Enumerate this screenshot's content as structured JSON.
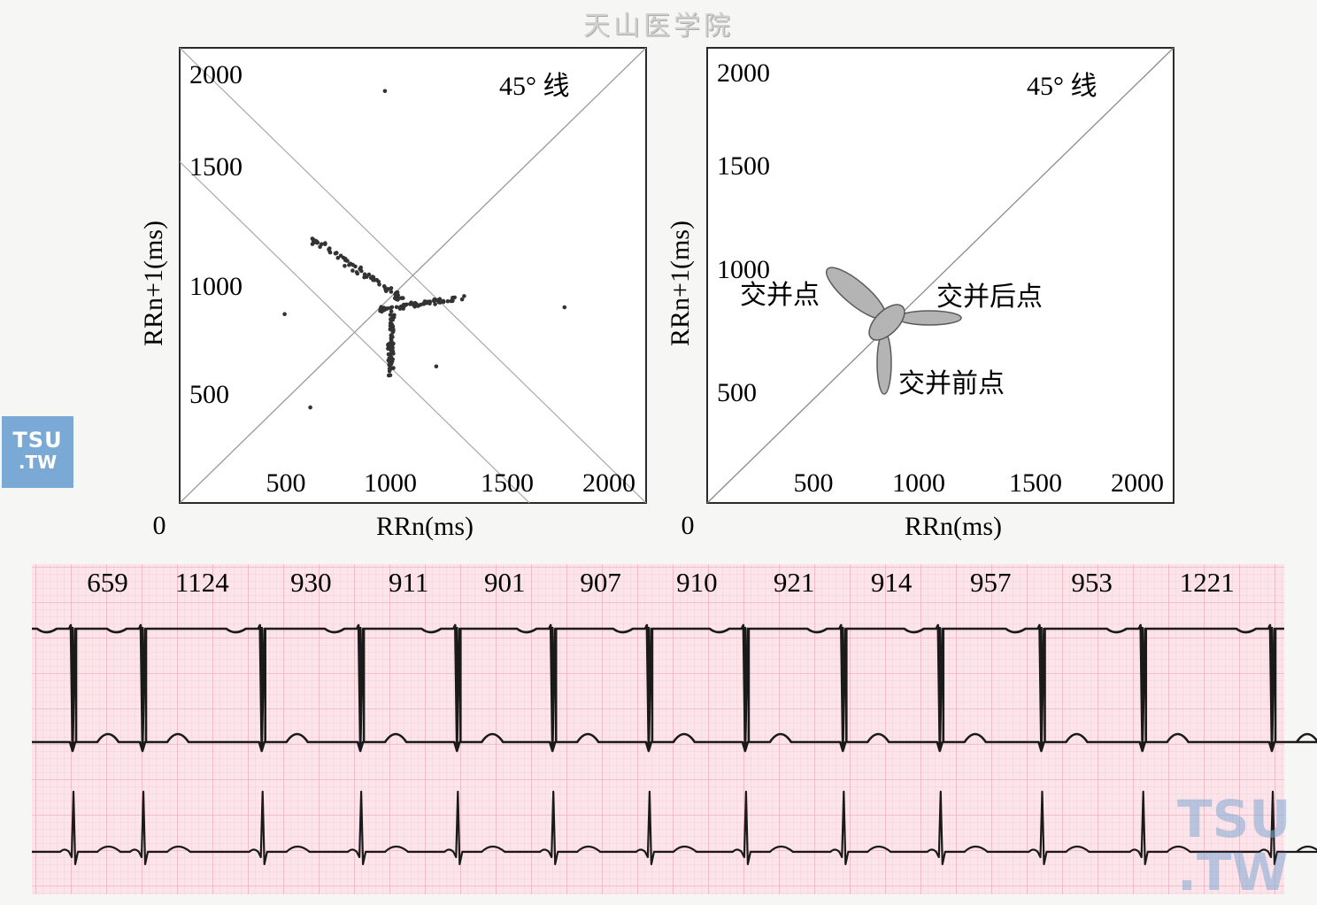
{
  "header": {
    "watermark": "天山医学院"
  },
  "badges": {
    "left_line1": "TSU",
    "left_line2": ".TW",
    "right_line1": "TSU",
    "right_line2": ".TW"
  },
  "chart_data": [
    {
      "type": "scatter",
      "title": "",
      "xlabel": "RRn(ms)",
      "ylabel": "RRn+1(ms)",
      "xlim": [
        0,
        2000
      ],
      "ylim": [
        0,
        2000
      ],
      "origin_label": "0",
      "x_ticks": [
        "500",
        "1000",
        "1500",
        "2000"
      ],
      "y_ticks": [
        "500",
        "1000",
        "1500",
        "2000"
      ],
      "annotation": "45° 线",
      "grid": true,
      "clusters": [
        {
          "name": "",
          "x_range": [
            570,
            1000
          ],
          "y_range": [
            880,
            1160
          ],
          "shape": "elongated, perpendicular to 45° line"
        },
        {
          "name": "",
          "x_range": [
            850,
            1250
          ],
          "y_range": [
            820,
            920
          ],
          "shape": "horizontal band"
        },
        {
          "name": "",
          "x_range": [
            880,
            950
          ],
          "y_range": [
            560,
            840
          ],
          "shape": "vertical band"
        }
      ],
      "outliers": [
        {
          "x": 880,
          "y": 1810
        },
        {
          "x": 450,
          "y": 830
        },
        {
          "x": 1650,
          "y": 860
        },
        {
          "x": 560,
          "y": 420
        },
        {
          "x": 1100,
          "y": 600
        }
      ],
      "color": "#333333"
    },
    {
      "type": "scatter",
      "title": "",
      "xlabel": "RRn(ms)",
      "ylabel": "RRn+1(ms)",
      "xlim": [
        0,
        2000
      ],
      "ylim": [
        0,
        2000
      ],
      "origin_label": "0",
      "x_ticks": [
        "500",
        "1000",
        "1500",
        "2000"
      ],
      "y_ticks": [
        "500",
        "1000",
        "1500",
        "2000"
      ],
      "annotation": "45° 线",
      "grid": false,
      "ellipses": [
        {
          "label": "交并点",
          "cx": 680,
          "cy": 950,
          "angle_deg": 40
        },
        {
          "label": "交并后点",
          "cx": 1020,
          "cy": 830,
          "angle_deg": 0
        },
        {
          "label": "交并前点",
          "cx": 810,
          "cy": 640,
          "angle_deg": 90
        },
        {
          "label": "",
          "cx": 820,
          "cy": 810,
          "angle_deg": -40
        }
      ],
      "color": "#b4b4b4"
    },
    {
      "type": "ecg",
      "title": "",
      "rr_intervals_ms": [
        659,
        1124,
        930,
        911,
        901,
        907,
        910,
        921,
        914,
        957,
        953,
        1221
      ],
      "leads": 2,
      "grid_color": "#f0b4c0",
      "paper_color": "#fbe4ea"
    }
  ]
}
